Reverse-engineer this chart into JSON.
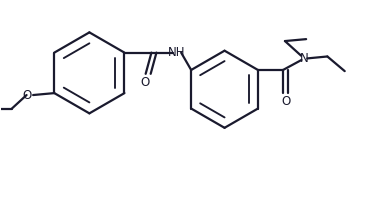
{
  "bg_color": "#ffffff",
  "line_color": "#1a1a2e",
  "line_width": 1.6,
  "figsize": [
    3.87,
    2.19
  ],
  "dpi": 100,
  "xlim": [
    0,
    10
  ],
  "ylim": [
    0,
    5.5
  ]
}
